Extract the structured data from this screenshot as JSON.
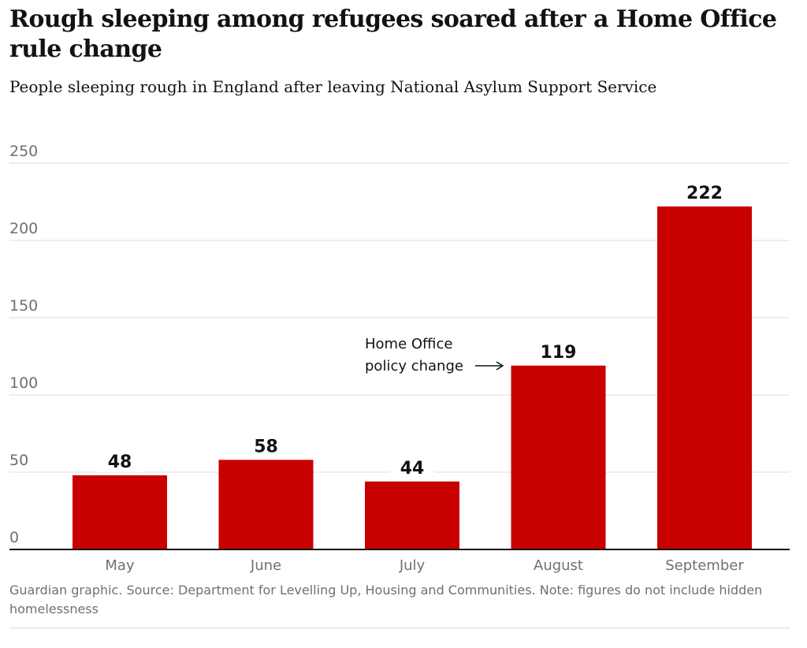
{
  "header": {
    "title": "Rough sleeping among refugees soared after a Home Office rule change",
    "subtitle": "People sleeping rough in England after leaving National Asylum Support Service"
  },
  "chart_data": {
    "type": "bar",
    "title": "Rough sleeping among refugees soared after a Home Office rule change",
    "subtitle": "People sleeping rough in England after leaving National Asylum Support Service",
    "categories": [
      "May",
      "June",
      "July",
      "August",
      "September"
    ],
    "values": [
      48,
      58,
      44,
      119,
      222
    ],
    "data_labels": [
      "48",
      "58",
      "44",
      "119",
      "222"
    ],
    "xlabel": "",
    "ylabel": "",
    "ylim": [
      0,
      250
    ],
    "yticks": [
      0,
      50,
      100,
      150,
      200,
      250
    ],
    "grid": true,
    "legend": "none",
    "annotation": {
      "lines": [
        "Home Office",
        "policy change"
      ],
      "arrow": "→",
      "points_to": "August"
    }
  },
  "colors": {
    "bar": "#c70000",
    "text": "#121212",
    "muted": "#707070",
    "grid": "#dcdcdc",
    "baseline": "#121212"
  },
  "footer": {
    "source": "Guardian graphic. Source: Department for Levelling Up, Housing and Communities. Note: figures do not include hidden homelessness"
  }
}
